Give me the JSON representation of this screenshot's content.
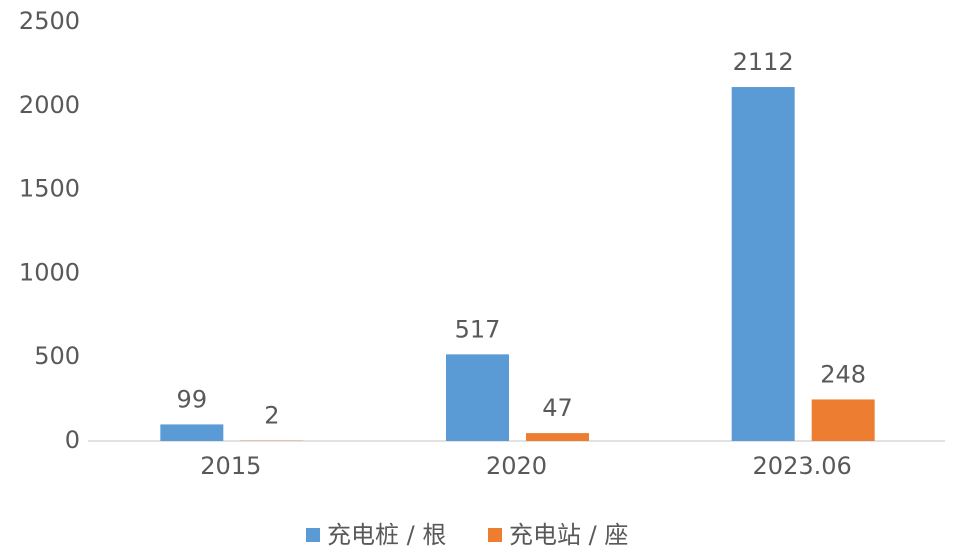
{
  "chart_data": {
    "type": "bar",
    "categories": [
      "2015",
      "2020",
      "2023.06"
    ],
    "series": [
      {
        "name": "充电桩 / 根",
        "color": "#5b9bd5",
        "values": [
          99,
          517,
          2112
        ]
      },
      {
        "name": "充电站 / 座",
        "color": "#ed7d31",
        "values": [
          2,
          47,
          248
        ]
      }
    ],
    "ylim": [
      0,
      2500
    ],
    "yticks": [
      0,
      500,
      1000,
      1500,
      2000,
      2500
    ],
    "grid": false,
    "legend": "bottom"
  }
}
